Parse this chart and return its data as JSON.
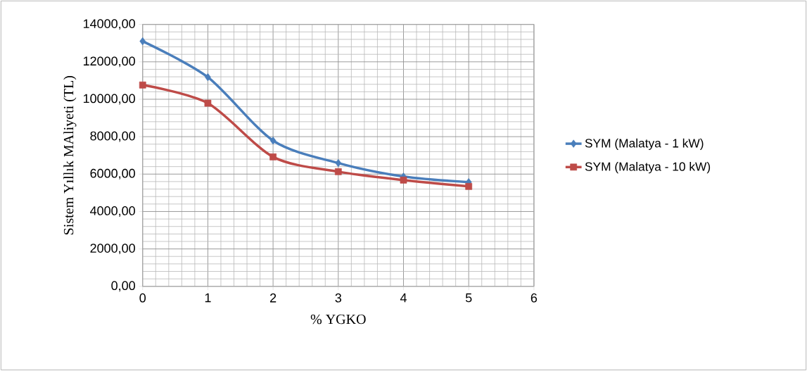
{
  "chart_data": {
    "type": "line",
    "xlabel": "% YGKO",
    "ylabel": "Sistem Yıllık MAliyeti (TL)",
    "x": [
      0,
      1,
      2,
      3,
      4,
      5
    ],
    "series": [
      {
        "name": "SYM (Malatya - 1 kW)",
        "color": "#4a7ebb",
        "marker": "diamond",
        "values": [
          13100,
          11180,
          7790,
          6590,
          5870,
          5570
        ]
      },
      {
        "name": "SYM (Malatya - 10 kW)",
        "color": "#be4b48",
        "marker": "square",
        "values": [
          10760,
          9790,
          6920,
          6130,
          5680,
          5340
        ]
      }
    ],
    "xlim": [
      0,
      6
    ],
    "xticks": [
      0,
      1,
      2,
      3,
      4,
      5,
      6
    ],
    "ylim": [
      0,
      14000
    ],
    "yticks": [
      {
        "value": 0,
        "label": "0,00"
      },
      {
        "value": 2000,
        "label": "2000,00"
      },
      {
        "value": 4000,
        "label": "4000,00"
      },
      {
        "value": 6000,
        "label": "6000,00"
      },
      {
        "value": 8000,
        "label": "8000,00"
      },
      {
        "value": 10000,
        "label": "10000,00"
      },
      {
        "value": 12000,
        "label": "12000,00"
      },
      {
        "value": 14000,
        "label": "14000,00"
      }
    ],
    "grid": true,
    "legend": "right",
    "line_style": "solid"
  }
}
